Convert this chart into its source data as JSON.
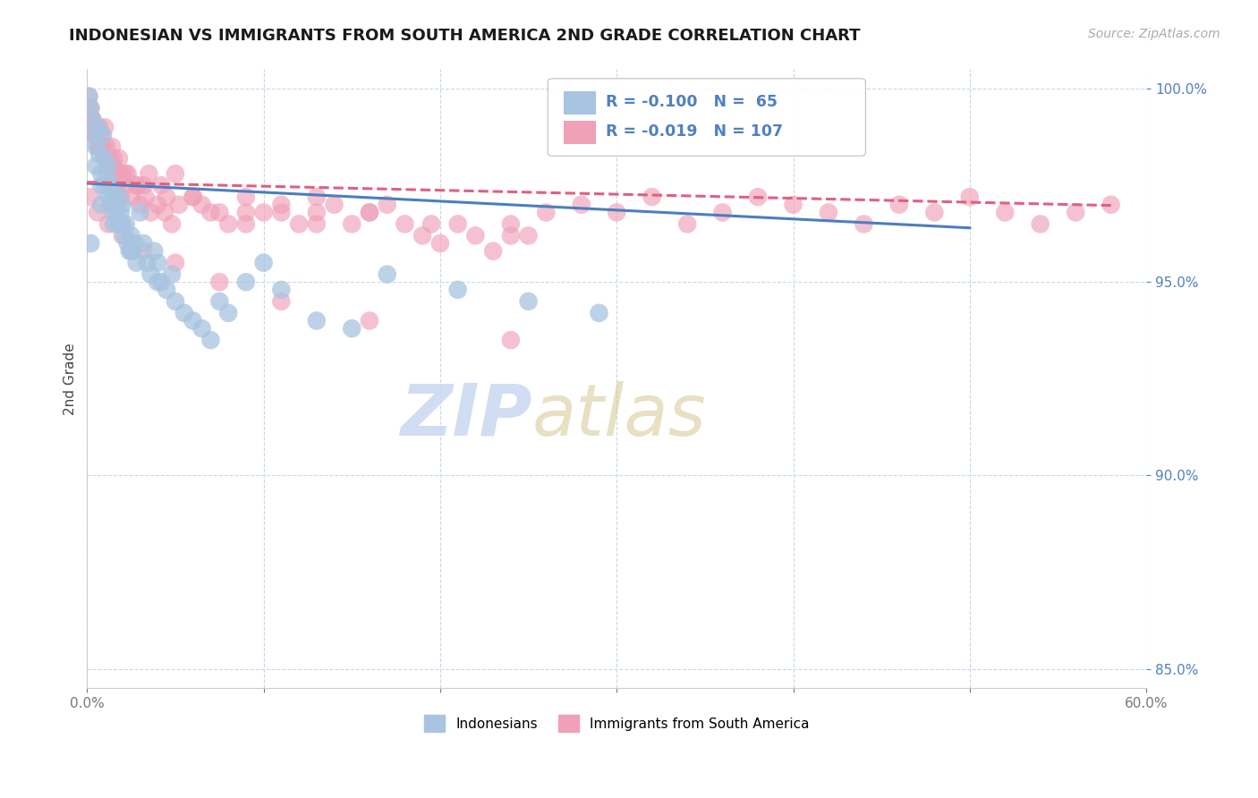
{
  "title": "INDONESIAN VS IMMIGRANTS FROM SOUTH AMERICA 2ND GRADE CORRELATION CHART",
  "source": "Source: ZipAtlas.com",
  "ylabel": "2nd Grade",
  "xlim": [
    0.0,
    0.6
  ],
  "ylim": [
    0.845,
    1.005
  ],
  "xticks": [
    0.0,
    0.1,
    0.2,
    0.3,
    0.4,
    0.5,
    0.6
  ],
  "xticklabels": [
    "0.0%",
    "",
    "",
    "",
    "",
    "",
    "60.0%"
  ],
  "yticks": [
    0.85,
    0.9,
    0.95,
    1.0
  ],
  "yticklabels": [
    "85.0%",
    "90.0%",
    "95.0%",
    "100.0%"
  ],
  "blue_R": -0.1,
  "blue_N": 65,
  "pink_R": -0.019,
  "pink_N": 107,
  "blue_color": "#a8c4e0",
  "pink_color": "#f0a0b8",
  "blue_line_color": "#4a7fc0",
  "pink_line_color": "#e06080",
  "axis_color": "#5080c0",
  "background_color": "#ffffff",
  "grid_color": "#c8d8ec",
  "title_fontsize": 13,
  "blue_scatter_x": [
    0.001,
    0.002,
    0.003,
    0.004,
    0.005,
    0.005,
    0.006,
    0.007,
    0.008,
    0.008,
    0.009,
    0.01,
    0.01,
    0.011,
    0.012,
    0.012,
    0.013,
    0.014,
    0.015,
    0.015,
    0.016,
    0.017,
    0.018,
    0.018,
    0.019,
    0.02,
    0.02,
    0.021,
    0.022,
    0.023,
    0.024,
    0.025,
    0.026,
    0.027,
    0.028,
    0.03,
    0.032,
    0.034,
    0.036,
    0.038,
    0.04,
    0.042,
    0.045,
    0.048,
    0.05,
    0.055,
    0.06,
    0.065,
    0.07,
    0.075,
    0.08,
    0.09,
    0.1,
    0.11,
    0.13,
    0.15,
    0.17,
    0.21,
    0.25,
    0.29,
    0.002,
    0.008,
    0.015,
    0.025,
    0.04
  ],
  "blue_scatter_y": [
    0.998,
    0.995,
    0.992,
    0.988,
    0.985,
    0.98,
    0.99,
    0.983,
    0.978,
    0.975,
    0.988,
    0.982,
    0.975,
    0.978,
    0.972,
    0.98,
    0.97,
    0.975,
    0.968,
    0.972,
    0.97,
    0.968,
    0.965,
    0.972,
    0.968,
    0.965,
    0.97,
    0.962,
    0.965,
    0.96,
    0.958,
    0.962,
    0.958,
    0.96,
    0.955,
    0.968,
    0.96,
    0.955,
    0.952,
    0.958,
    0.955,
    0.95,
    0.948,
    0.952,
    0.945,
    0.942,
    0.94,
    0.938,
    0.935,
    0.945,
    0.942,
    0.95,
    0.955,
    0.948,
    0.94,
    0.938,
    0.952,
    0.948,
    0.945,
    0.942,
    0.96,
    0.97,
    0.965,
    0.958,
    0.95
  ],
  "pink_scatter_x": [
    0.001,
    0.002,
    0.003,
    0.004,
    0.005,
    0.006,
    0.007,
    0.008,
    0.009,
    0.01,
    0.011,
    0.012,
    0.013,
    0.014,
    0.015,
    0.016,
    0.017,
    0.018,
    0.019,
    0.02,
    0.022,
    0.025,
    0.028,
    0.03,
    0.033,
    0.036,
    0.04,
    0.044,
    0.048,
    0.052,
    0.06,
    0.07,
    0.08,
    0.09,
    0.1,
    0.11,
    0.12,
    0.13,
    0.14,
    0.15,
    0.16,
    0.17,
    0.18,
    0.19,
    0.2,
    0.21,
    0.22,
    0.23,
    0.24,
    0.25,
    0.26,
    0.28,
    0.3,
    0.32,
    0.34,
    0.36,
    0.38,
    0.4,
    0.42,
    0.44,
    0.46,
    0.48,
    0.5,
    0.52,
    0.54,
    0.56,
    0.58,
    0.001,
    0.003,
    0.005,
    0.007,
    0.01,
    0.014,
    0.018,
    0.023,
    0.028,
    0.035,
    0.042,
    0.05,
    0.06,
    0.075,
    0.09,
    0.11,
    0.13,
    0.16,
    0.195,
    0.24,
    0.001,
    0.004,
    0.008,
    0.015,
    0.022,
    0.032,
    0.045,
    0.065,
    0.09,
    0.13,
    0.002,
    0.006,
    0.012,
    0.02,
    0.032,
    0.05,
    0.075,
    0.11,
    0.16,
    0.24
  ],
  "pink_scatter_y": [
    0.998,
    0.995,
    0.992,
    0.99,
    0.988,
    0.985,
    0.99,
    0.988,
    0.985,
    0.982,
    0.985,
    0.98,
    0.982,
    0.978,
    0.98,
    0.978,
    0.975,
    0.978,
    0.972,
    0.978,
    0.975,
    0.972,
    0.975,
    0.97,
    0.972,
    0.968,
    0.97,
    0.968,
    0.965,
    0.97,
    0.972,
    0.968,
    0.965,
    0.972,
    0.968,
    0.97,
    0.965,
    0.968,
    0.97,
    0.965,
    0.968,
    0.97,
    0.965,
    0.962,
    0.96,
    0.965,
    0.962,
    0.958,
    0.965,
    0.962,
    0.968,
    0.97,
    0.968,
    0.972,
    0.965,
    0.968,
    0.972,
    0.97,
    0.968,
    0.965,
    0.97,
    0.968,
    0.972,
    0.968,
    0.965,
    0.968,
    0.97,
    0.995,
    0.992,
    0.988,
    0.985,
    0.99,
    0.985,
    0.982,
    0.978,
    0.975,
    0.978,
    0.975,
    0.978,
    0.972,
    0.968,
    0.965,
    0.968,
    0.972,
    0.968,
    0.965,
    0.962,
    0.992,
    0.988,
    0.985,
    0.982,
    0.978,
    0.975,
    0.972,
    0.97,
    0.968,
    0.965,
    0.972,
    0.968,
    0.965,
    0.962,
    0.958,
    0.955,
    0.95,
    0.945,
    0.94,
    0.935
  ],
  "blue_line_x0": 0.0,
  "blue_line_x1": 0.5,
  "blue_line_y0": 0.9755,
  "blue_line_y1": 0.964,
  "pink_line_x0": 0.0,
  "pink_line_x1": 0.58,
  "pink_line_y0": 0.9758,
  "pink_line_y1": 0.9698
}
